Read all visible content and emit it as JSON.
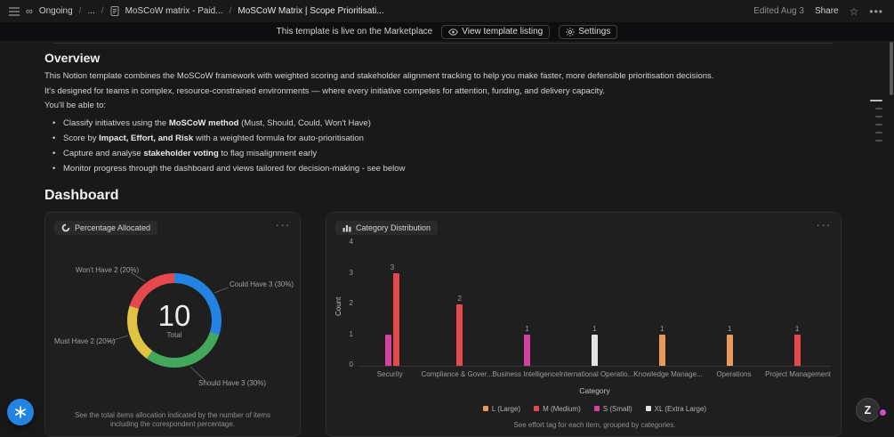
{
  "topbar": {
    "workspace": "Ongoing",
    "sep": "/",
    "breadcrumb_ellipsis": "...",
    "parent_page": "MoSCoW matrix - Paid...",
    "current_page": "MoSCoW Matrix | Scope Prioritisati...",
    "edited": "Edited Aug 3",
    "share_label": "Share"
  },
  "banner": {
    "message": "This template is live on the Marketplace",
    "view_listing_label": "View template listing",
    "settings_label": "Settings"
  },
  "overview": {
    "heading": "Overview",
    "p1": "This Notion template combines the MoSCoW framework with weighted scoring and stakeholder alignment tracking to help you make faster, more defensible prioritisation decisions.",
    "p2": "It's designed for teams in complex, resource-constrained environments — where every initiative competes for attention, funding, and delivery capacity.",
    "p3": "You'll be able to:",
    "bullets": [
      {
        "pre": "Classify initiatives using the ",
        "bold": "MoSCoW method",
        "post": " (Must, Should, Could, Won't Have)"
      },
      {
        "pre": "Score by ",
        "bold": "Impact, Effort, and Risk",
        "post": " with a weighted formula for auto-prioritisation"
      },
      {
        "pre": "Capture and analyse ",
        "bold": "stakeholder voting",
        "post": " to flag misalignment early"
      },
      {
        "pre": "Monitor progress through the dashboard and views tailored for decision-making - see below",
        "bold": "",
        "post": ""
      }
    ]
  },
  "dashboard_heading": "Dashboard",
  "chart_data": [
    {
      "type": "pie",
      "title": "Percentage Allocated",
      "total": 10,
      "total_label": "Total",
      "slices": [
        {
          "label": "Could Have",
          "value": 3,
          "pct": 30,
          "color": "#2383e2",
          "display": "Could Have 3 (30%)"
        },
        {
          "label": "Should Have",
          "value": 3,
          "pct": 30,
          "color": "#44a85c",
          "display": "Should Have 3 (30%)"
        },
        {
          "label": "Must Have",
          "value": 2,
          "pct": 20,
          "color": "#e0c341",
          "display": "Must Have 2 (20%)"
        },
        {
          "label": "Won't Have",
          "value": 2,
          "pct": 20,
          "color": "#e5484d",
          "display": "Won't Have 2 (20%)"
        }
      ],
      "caption": "See the total items allocation indicated by the number of items including the corespondent percentage."
    },
    {
      "type": "bar",
      "title": "Category Distribution",
      "xlabel": "Category",
      "ylabel": "Count",
      "ylim": [
        0,
        4
      ],
      "yticks": [
        0,
        1,
        2,
        3,
        4
      ],
      "categories": [
        "Security",
        "Compliance & Gover...",
        "Business Intelligence",
        "International Operatio...",
        "Knowledge Manage...",
        "Operations",
        "Project Management"
      ],
      "series": [
        {
          "name": "L (Large)",
          "color": "#e8995c",
          "values": [
            0,
            0,
            0,
            0,
            1,
            1,
            0
          ]
        },
        {
          "name": "M (Medium)",
          "color": "#e5484d",
          "values": [
            3,
            2,
            0,
            0,
            0,
            0,
            1
          ]
        },
        {
          "name": "S (Small)",
          "color": "#d6409f",
          "values": [
            1,
            0,
            1,
            0,
            0,
            0,
            0
          ]
        },
        {
          "name": "XL (Extra Large)",
          "color": "#e3e3e3",
          "values": [
            0,
            0,
            0,
            1,
            0,
            0,
            0
          ]
        }
      ],
      "bar_order": [
        "S (Small)",
        "M (Medium)",
        "L (Large)",
        "XL (Extra Large)"
      ],
      "legend_position": "bottom",
      "grid": false,
      "caption": "See effort tag for each item, grouped by categories."
    }
  ],
  "floating": {
    "z_label": "Z"
  }
}
